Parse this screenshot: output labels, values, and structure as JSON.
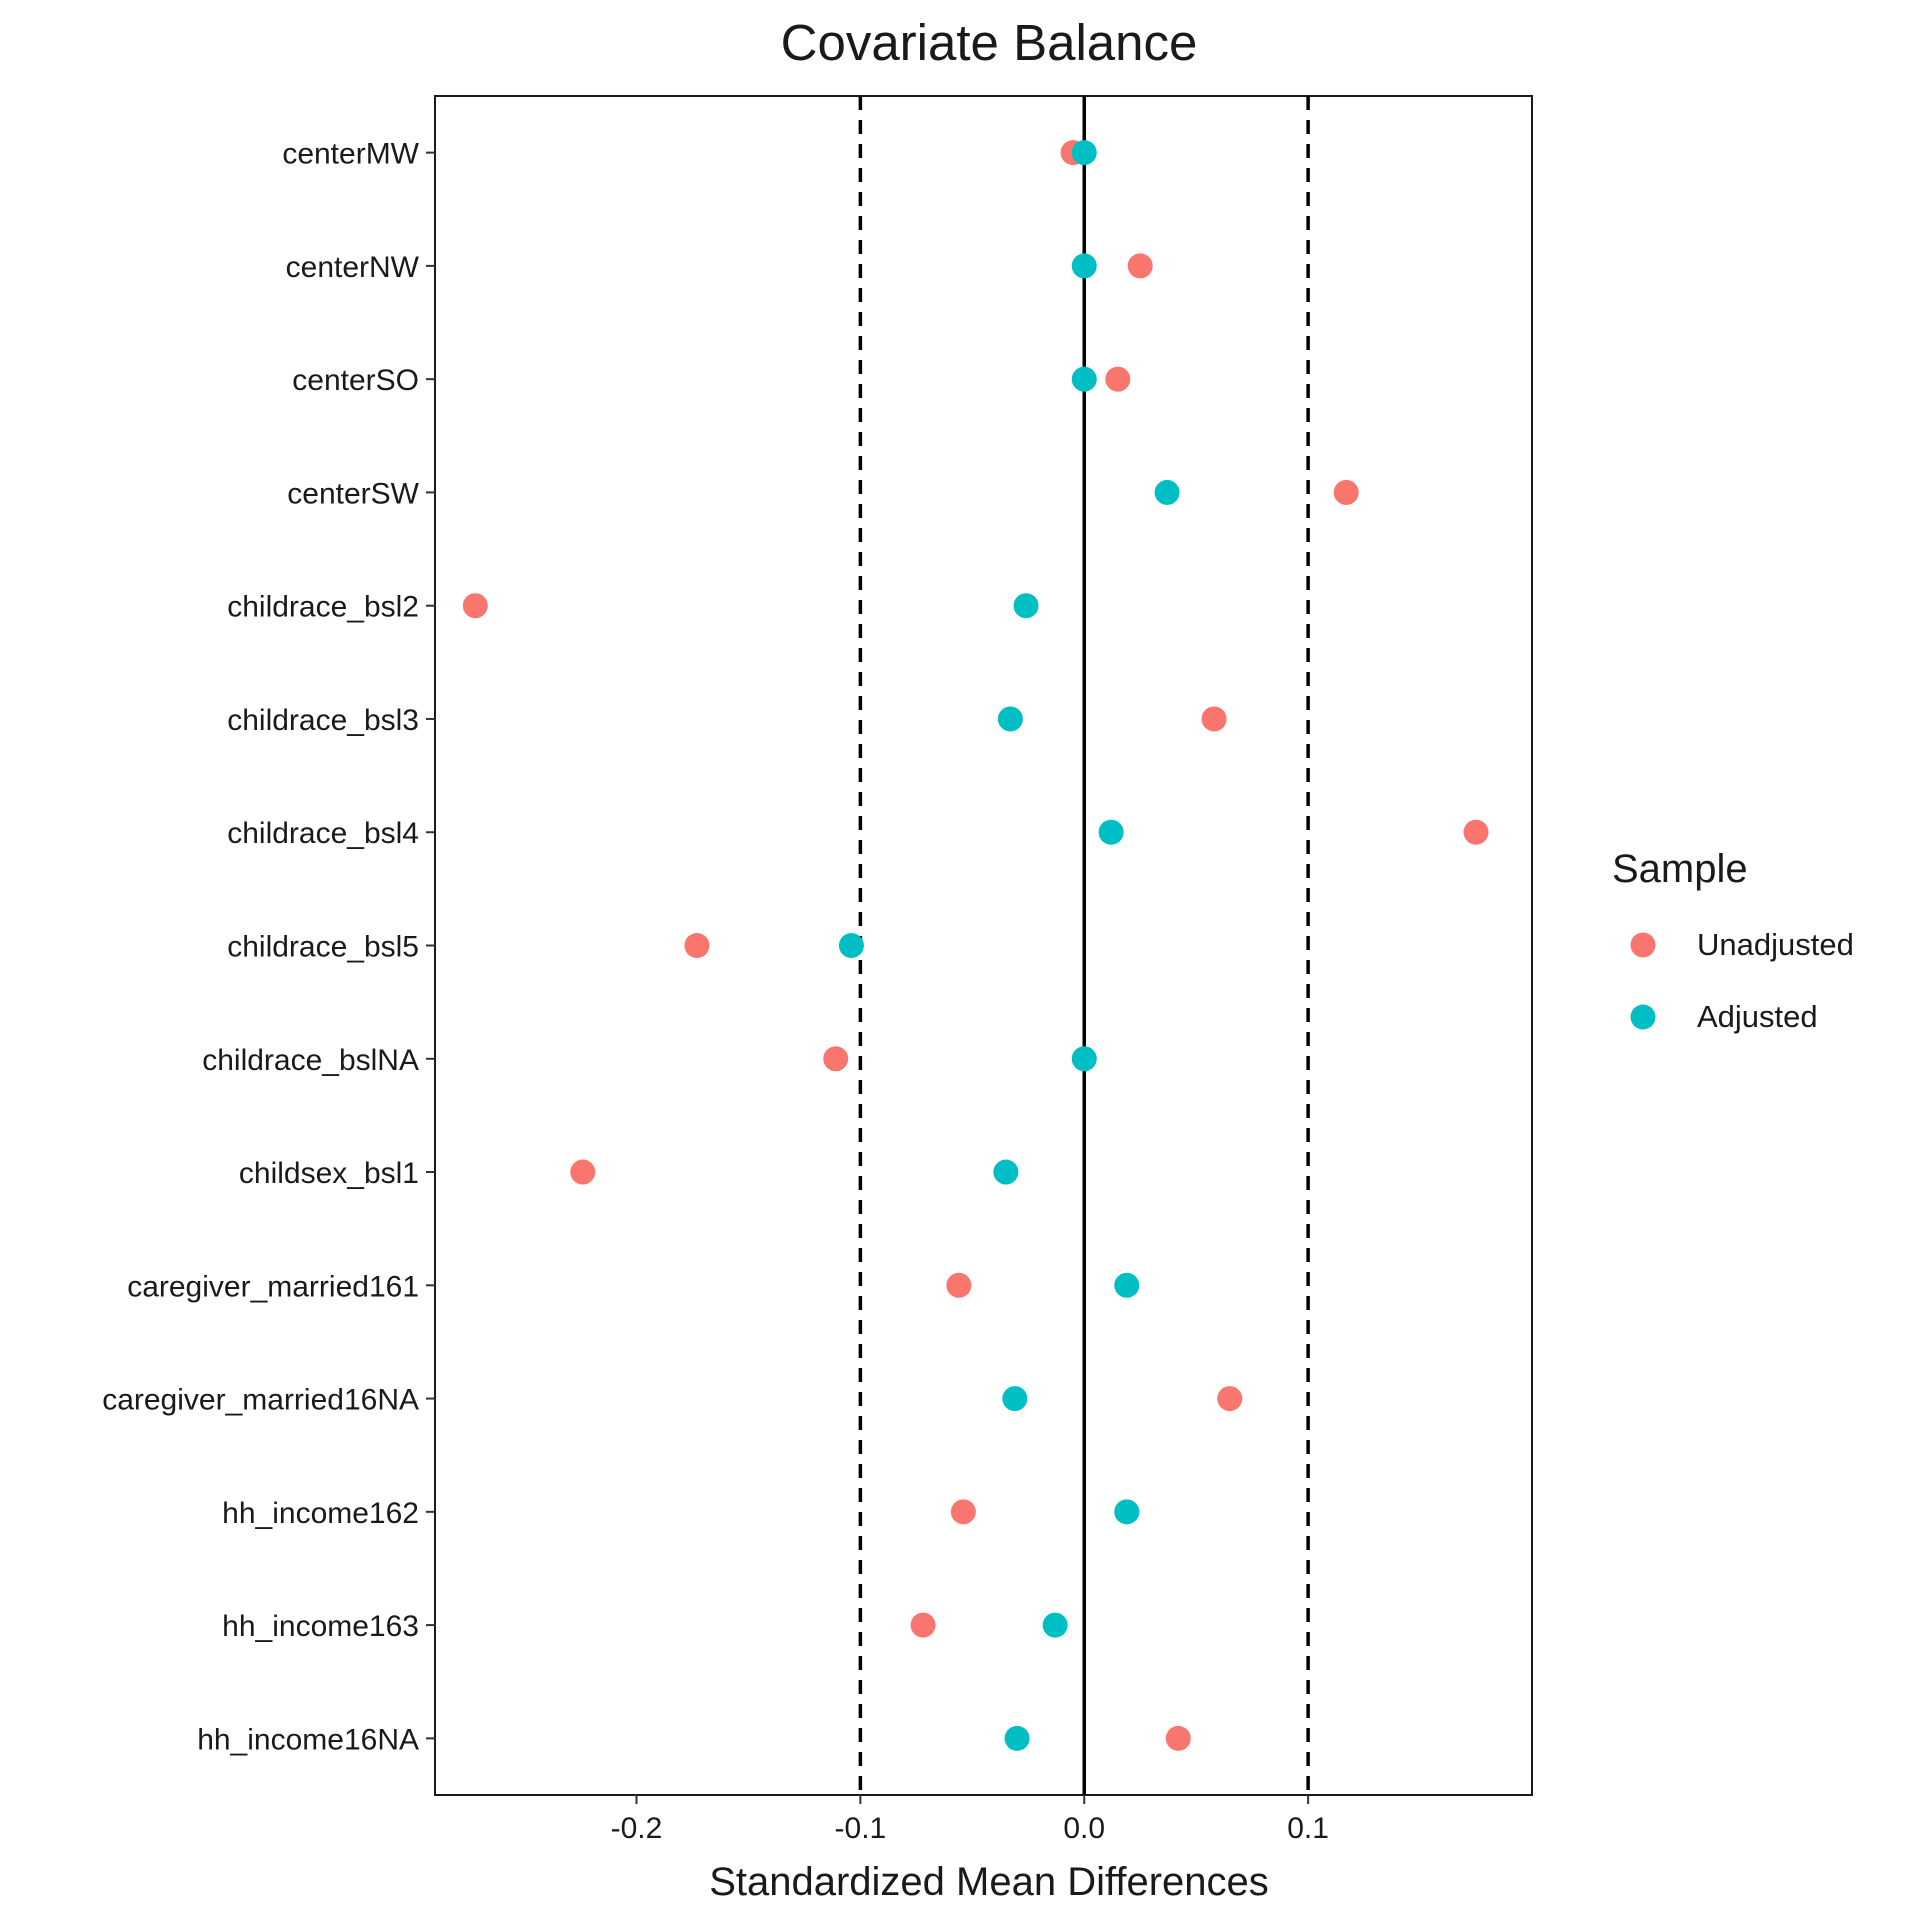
{
  "chart_data": {
    "type": "scatter",
    "title": "Covariate Balance",
    "xlabel": "Standardized Mean Differences",
    "ylabel": "",
    "xlim": [
      -0.29,
      0.2
    ],
    "x_ticks": [
      -0.2,
      -0.1,
      0.0,
      0.1
    ],
    "x_tick_labels": [
      "-0.2",
      "-0.1",
      "0.0",
      "0.1"
    ],
    "reference_lines": [
      {
        "x": 0.0,
        "style": "solid"
      },
      {
        "x": -0.1,
        "style": "dashed"
      },
      {
        "x": 0.1,
        "style": "dashed"
      }
    ],
    "grid": false,
    "legend_position": "right",
    "legend_title": "Sample",
    "categories": [
      "centerMW",
      "centerNW",
      "centerSO",
      "centerSW",
      "childrace_bsl2",
      "childrace_bsl3",
      "childrace_bsl4",
      "childrace_bsl5",
      "childrace_bslNA",
      "childsex_bsl1",
      "caregiver_married161",
      "caregiver_married16NA",
      "hh_income162",
      "hh_income163",
      "hh_income16NA"
    ],
    "series": [
      {
        "name": "Unadjusted",
        "color": "#F8766D",
        "values": [
          -0.005,
          0.025,
          0.015,
          0.117,
          -0.272,
          0.058,
          0.175,
          -0.173,
          -0.111,
          -0.224,
          -0.056,
          0.065,
          -0.054,
          -0.072,
          0.042
        ]
      },
      {
        "name": "Adjusted",
        "color": "#00BFC4",
        "values": [
          0.0,
          0.0,
          0.0,
          0.037,
          -0.026,
          -0.033,
          0.012,
          -0.104,
          0.0,
          -0.035,
          0.019,
          -0.031,
          0.019,
          -0.013,
          -0.03
        ]
      }
    ]
  }
}
